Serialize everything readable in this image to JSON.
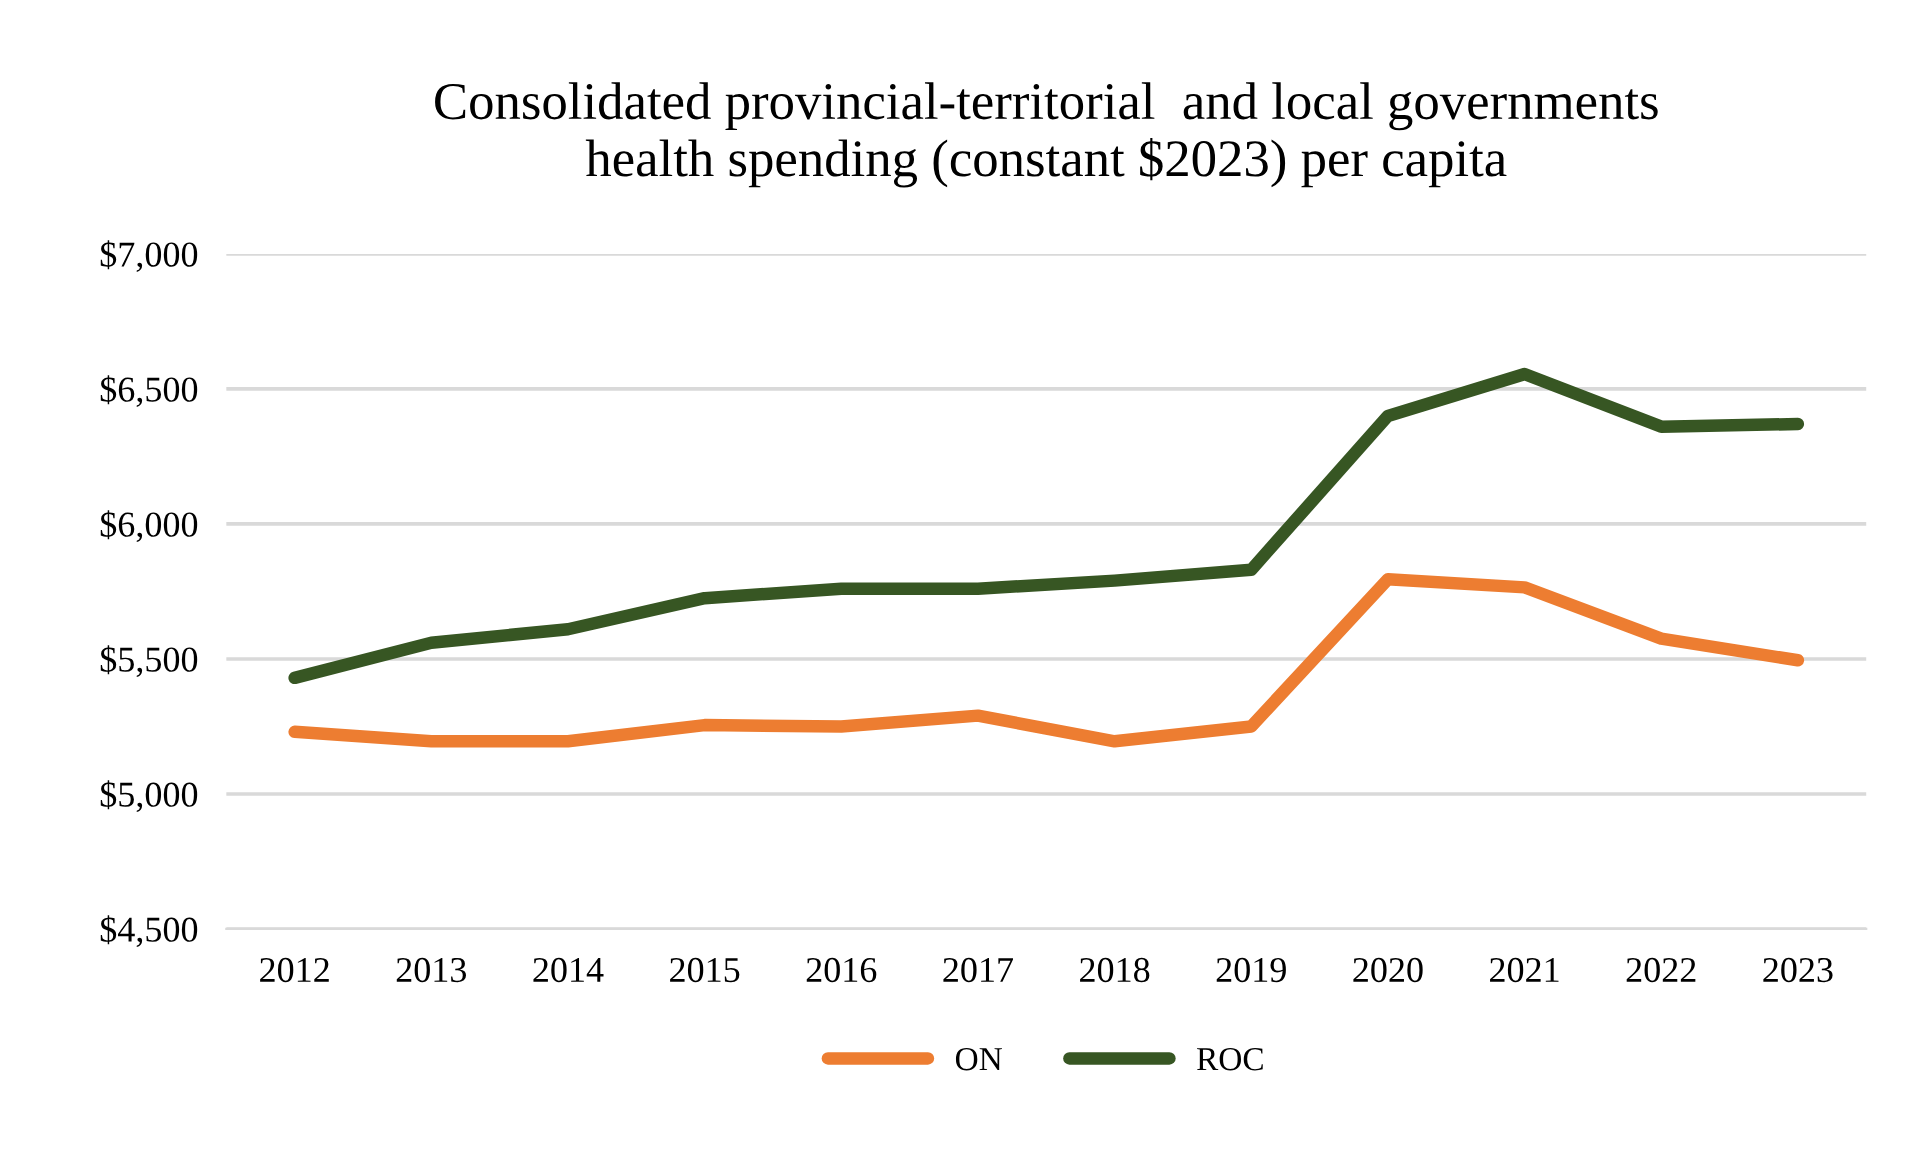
{
  "chart_data": {
    "type": "line",
    "title": "Consolidated provincial-territorial  and local governments\nhealth spending (constant $2023) per capita",
    "categories": [
      "2012",
      "2013",
      "2014",
      "2015",
      "2016",
      "2017",
      "2018",
      "2019",
      "2020",
      "2021",
      "2022",
      "2023"
    ],
    "series": [
      {
        "name": "ON",
        "color": "#ed7d31",
        "values": [
          5230,
          5195,
          5195,
          5255,
          5250,
          5290,
          5195,
          5250,
          5795,
          5765,
          5575,
          5495
        ]
      },
      {
        "name": "ROC",
        "color": "#375623",
        "values": [
          5430,
          5560,
          5610,
          5725,
          5760,
          5760,
          5790,
          5830,
          6400,
          6555,
          6360,
          6370
        ]
      }
    ],
    "ylim": [
      4500,
      7000
    ],
    "yticks": [
      {
        "value": 4500,
        "label": "$4,500"
      },
      {
        "value": 5000,
        "label": "$5,000"
      },
      {
        "value": 5500,
        "label": "$5,500"
      },
      {
        "value": 6000,
        "label": "$6,000"
      },
      {
        "value": 6500,
        "label": "$6,500"
      },
      {
        "value": 7000,
        "label": "$7,000"
      }
    ],
    "grid": "y",
    "legend": "bottom",
    "marker": "none",
    "line_style": "solid"
  }
}
